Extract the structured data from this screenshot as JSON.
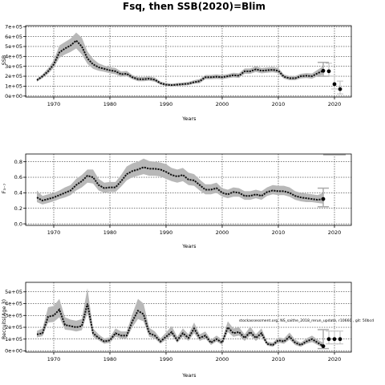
{
  "figure_title": "Fsq, then SSB(2020)=Blim",
  "colors": {
    "band": "#b8b8b8",
    "line": "#111111",
    "grid": "#000000"
  },
  "chart_data": [
    {
      "type": "line",
      "ylabel": "SSB",
      "xlabel": "Years",
      "xlim": [
        1965,
        2023
      ],
      "ylim": [
        -10000,
        710000
      ],
      "x_ticks": [
        1970,
        1980,
        1990,
        2000,
        2010,
        2020
      ],
      "y_ticks": [
        0,
        100000,
        200000,
        300000,
        400000,
        500000,
        600000,
        700000
      ],
      "y_tick_labels": [
        "0e+00",
        "1e+05",
        "2e+05",
        "3e+05",
        "4e+05",
        "5e+05",
        "6e+05",
        "7e+05"
      ],
      "years": [
        1967,
        1968,
        1969,
        1970,
        1971,
        1972,
        1973,
        1974,
        1975,
        1976,
        1977,
        1978,
        1979,
        1980,
        1981,
        1982,
        1983,
        1984,
        1985,
        1986,
        1987,
        1988,
        1989,
        1990,
        1991,
        1992,
        1993,
        1994,
        1995,
        1996,
        1997,
        1998,
        1999,
        2000,
        2001,
        2002,
        2003,
        2004,
        2005,
        2006,
        2007,
        2008,
        2009,
        2010,
        2011,
        2012,
        2013,
        2014,
        2015,
        2016,
        2017,
        2018
      ],
      "values": [
        160000,
        200000,
        250000,
        320000,
        440000,
        480000,
        510000,
        560000,
        500000,
        380000,
        320000,
        290000,
        275000,
        260000,
        250000,
        220000,
        225000,
        190000,
        170000,
        170000,
        175000,
        165000,
        130000,
        115000,
        110000,
        115000,
        120000,
        125000,
        140000,
        150000,
        190000,
        190000,
        195000,
        190000,
        200000,
        210000,
        205000,
        250000,
        250000,
        270000,
        255000,
        260000,
        265000,
        255000,
        195000,
        180000,
        180000,
        200000,
        205000,
        200000,
        230000,
        255000
      ],
      "lower": [
        145000,
        180000,
        225000,
        285000,
        385000,
        420000,
        445000,
        480000,
        420000,
        325000,
        275000,
        255000,
        245000,
        230000,
        220000,
        195000,
        200000,
        170000,
        150000,
        150000,
        155000,
        145000,
        115000,
        100000,
        97000,
        100000,
        105000,
        110000,
        123000,
        130000,
        170000,
        170000,
        173000,
        170000,
        180000,
        188000,
        183000,
        225000,
        225000,
        243000,
        230000,
        235000,
        240000,
        230000,
        175000,
        160000,
        160000,
        178000,
        182000,
        175000,
        200000,
        215000
      ],
      "upper": [
        175000,
        220000,
        280000,
        360000,
        510000,
        545000,
        580000,
        640000,
        590000,
        450000,
        375000,
        330000,
        308000,
        292000,
        283000,
        248000,
        253000,
        212000,
        192000,
        192000,
        197000,
        187000,
        147000,
        132000,
        125000,
        132000,
        137000,
        143000,
        160000,
        172000,
        212000,
        212000,
        219000,
        212000,
        222000,
        235000,
        230000,
        278000,
        278000,
        300000,
        283000,
        288000,
        293000,
        283000,
        218000,
        202000,
        202000,
        225000,
        232000,
        228000,
        265000,
        300000
      ],
      "projection_x": [
        2018,
        2019,
        2020,
        2021
      ],
      "projection_y": [
        255000,
        250000,
        120000,
        70000
      ],
      "bracket_x": 2018,
      "bracket_y": [
        200000,
        340000
      ]
    },
    {
      "type": "line",
      "ylabel": "F₃₋₇",
      "xlabel": "Years",
      "xlim": [
        1965,
        2023
      ],
      "ylim": [
        -0.02,
        0.9
      ],
      "x_ticks": [
        1970,
        1980,
        1990,
        2000,
        2010,
        2020
      ],
      "y_ticks": [
        0.0,
        0.2,
        0.4,
        0.6,
        0.8
      ],
      "y_tick_labels": [
        "0.0",
        "0.2",
        "0.4",
        "0.6",
        "0.8"
      ],
      "years": [
        1967,
        1968,
        1969,
        1970,
        1971,
        1972,
        1973,
        1974,
        1975,
        1976,
        1977,
        1978,
        1979,
        1980,
        1981,
        1982,
        1983,
        1984,
        1985,
        1986,
        1987,
        1988,
        1989,
        1990,
        1991,
        1992,
        1993,
        1994,
        1995,
        1996,
        1997,
        1998,
        1999,
        2000,
        2001,
        2002,
        2003,
        2004,
        2005,
        2006,
        2007,
        2008,
        2009,
        2010,
        2011,
        2012,
        2013,
        2014,
        2015,
        2016,
        2017,
        2018
      ],
      "values": [
        0.34,
        0.3,
        0.32,
        0.34,
        0.37,
        0.4,
        0.43,
        0.5,
        0.55,
        0.62,
        0.6,
        0.5,
        0.46,
        0.47,
        0.47,
        0.55,
        0.64,
        0.68,
        0.7,
        0.73,
        0.71,
        0.71,
        0.7,
        0.67,
        0.63,
        0.61,
        0.63,
        0.57,
        0.56,
        0.5,
        0.44,
        0.44,
        0.46,
        0.4,
        0.38,
        0.41,
        0.4,
        0.36,
        0.36,
        0.38,
        0.36,
        0.41,
        0.43,
        0.42,
        0.42,
        0.4,
        0.36,
        0.34,
        0.33,
        0.32,
        0.31,
        0.32
      ],
      "lower": [
        0.28,
        0.25,
        0.27,
        0.29,
        0.32,
        0.34,
        0.37,
        0.43,
        0.47,
        0.53,
        0.52,
        0.43,
        0.4,
        0.41,
        0.41,
        0.48,
        0.56,
        0.6,
        0.62,
        0.64,
        0.62,
        0.62,
        0.61,
        0.58,
        0.55,
        0.53,
        0.55,
        0.5,
        0.49,
        0.43,
        0.38,
        0.38,
        0.4,
        0.35,
        0.33,
        0.35,
        0.35,
        0.31,
        0.31,
        0.33,
        0.31,
        0.36,
        0.38,
        0.37,
        0.37,
        0.35,
        0.31,
        0.29,
        0.28,
        0.28,
        0.27,
        0.26
      ],
      "upper": [
        0.43,
        0.36,
        0.38,
        0.4,
        0.43,
        0.47,
        0.5,
        0.58,
        0.63,
        0.7,
        0.7,
        0.58,
        0.53,
        0.54,
        0.54,
        0.63,
        0.74,
        0.78,
        0.8,
        0.84,
        0.81,
        0.8,
        0.79,
        0.77,
        0.72,
        0.7,
        0.72,
        0.66,
        0.64,
        0.57,
        0.51,
        0.51,
        0.53,
        0.46,
        0.44,
        0.47,
        0.46,
        0.42,
        0.42,
        0.44,
        0.42,
        0.47,
        0.5,
        0.49,
        0.49,
        0.47,
        0.42,
        0.4,
        0.39,
        0.38,
        0.37,
        0.4
      ],
      "projection_x": [
        2018
      ],
      "projection_y": [
        0.32
      ],
      "bracket_x": 2018,
      "bracket_y": [
        0.22,
        0.46
      ],
      "top_mark_x": 2020,
      "top_mark_y": 0.89
    },
    {
      "type": "line",
      "ylabel": "Recruits(Age 3)",
      "xlabel": "Years",
      "xlim": [
        1965,
        2023
      ],
      "ylim": [
        -10000,
        580000
      ],
      "x_ticks": [
        1970,
        1980,
        1990,
        2000,
        2010,
        2020
      ],
      "y_ticks": [
        0,
        100000,
        200000,
        300000,
        400000,
        500000
      ],
      "y_tick_labels": [
        "0e+00",
        "1e+05",
        "2e+05",
        "3e+05",
        "4e+05",
        "5e+05"
      ],
      "years": [
        1967,
        1968,
        1969,
        1970,
        1971,
        1972,
        1973,
        1974,
        1975,
        1976,
        1977,
        1978,
        1979,
        1980,
        1981,
        1982,
        1983,
        1984,
        1985,
        1986,
        1987,
        1988,
        1989,
        1990,
        1991,
        1992,
        1993,
        1994,
        1995,
        1996,
        1997,
        1998,
        1999,
        2000,
        2001,
        2002,
        2003,
        2004,
        2005,
        2006,
        2007,
        2008,
        2009,
        2010,
        2011,
        2012,
        2013,
        2014,
        2015,
        2016,
        2017,
        2018
      ],
      "values": [
        140000,
        150000,
        290000,
        300000,
        350000,
        220000,
        210000,
        200000,
        210000,
        400000,
        150000,
        110000,
        80000,
        90000,
        150000,
        130000,
        130000,
        250000,
        340000,
        310000,
        150000,
        130000,
        80000,
        120000,
        160000,
        90000,
        150000,
        110000,
        190000,
        110000,
        130000,
        70000,
        100000,
        70000,
        200000,
        150000,
        160000,
        110000,
        160000,
        110000,
        150000,
        60000,
        50000,
        90000,
        80000,
        120000,
        70000,
        50000,
        80000,
        100000,
        70000,
        40000
      ],
      "lower": [
        115000,
        125000,
        240000,
        245000,
        285000,
        180000,
        175000,
        165000,
        175000,
        320000,
        120000,
        90000,
        60000,
        70000,
        120000,
        105000,
        105000,
        200000,
        270000,
        250000,
        120000,
        105000,
        60000,
        95000,
        130000,
        70000,
        120000,
        85000,
        150000,
        85000,
        105000,
        50000,
        80000,
        50000,
        160000,
        120000,
        130000,
        85000,
        130000,
        85000,
        120000,
        45000,
        35000,
        70000,
        60000,
        95000,
        50000,
        35000,
        60000,
        75000,
        50000,
        25000
      ],
      "upper": [
        170000,
        190000,
        370000,
        380000,
        440000,
        285000,
        265000,
        255000,
        270000,
        530000,
        190000,
        140000,
        105000,
        115000,
        190000,
        165000,
        165000,
        310000,
        440000,
        400000,
        195000,
        165000,
        105000,
        155000,
        210000,
        120000,
        190000,
        140000,
        240000,
        140000,
        165000,
        95000,
        130000,
        95000,
        250000,
        190000,
        200000,
        140000,
        205000,
        140000,
        190000,
        80000,
        70000,
        115000,
        105000,
        155000,
        95000,
        70000,
        105000,
        130000,
        95000,
        70000
      ],
      "projection_x": [
        2018,
        2019,
        2020,
        2021
      ],
      "projection_y": [
        40000,
        100000,
        100000,
        100000
      ],
      "bracket_x": 2018,
      "bracket_y": [
        20000,
        180000
      ],
      "annotation": "stockassessment.org, NS_saithe_2018_rerun_update, r10660 , git: 50bcd"
    }
  ]
}
